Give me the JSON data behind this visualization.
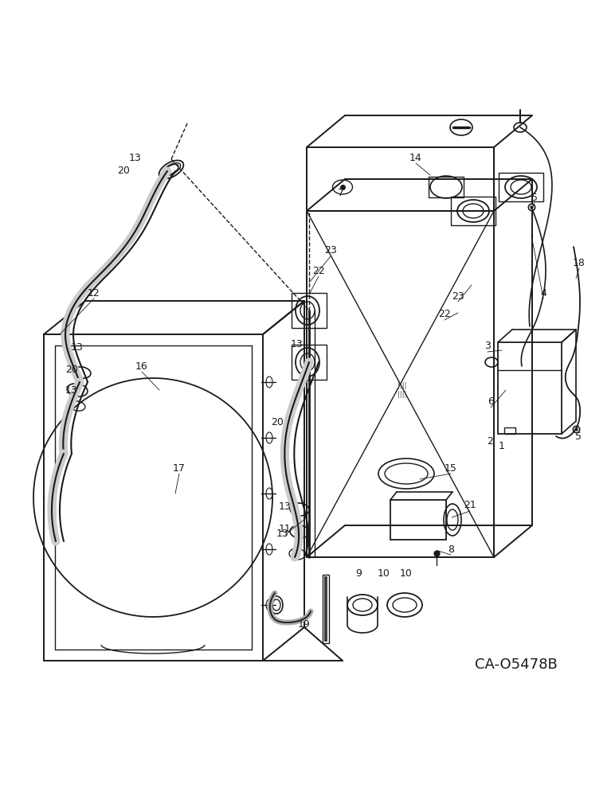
{
  "figure_width": 7.72,
  "figure_height": 10.0,
  "dpi": 100,
  "bg_color": "#ffffff",
  "line_color": "#1a1a1a",
  "catalog_number": "CA-O5478B"
}
